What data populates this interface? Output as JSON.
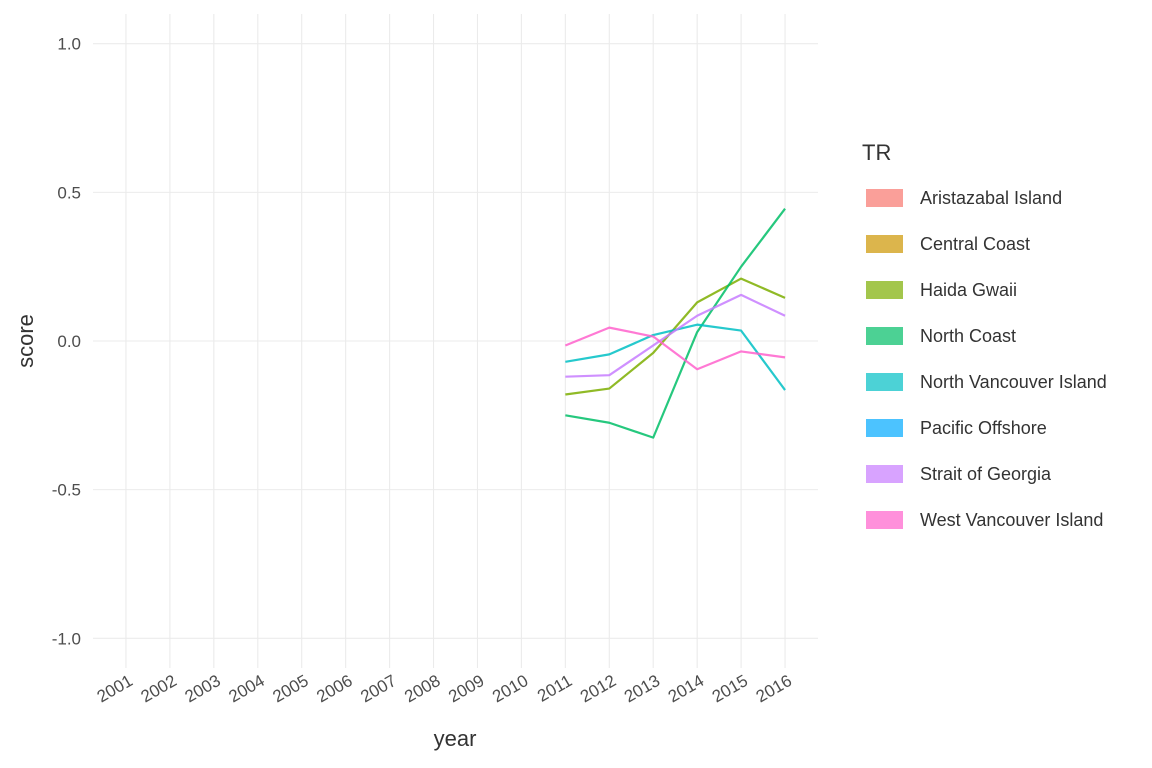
{
  "chart_data": {
    "type": "line",
    "title": "",
    "xlabel": "year",
    "ylabel": "score",
    "x": [
      2001,
      2002,
      2003,
      2004,
      2005,
      2006,
      2007,
      2008,
      2009,
      2010,
      2011,
      2012,
      2013,
      2014,
      2015,
      2016
    ],
    "x_tick_labels": [
      "2001",
      "2002",
      "2003",
      "2004",
      "2005",
      "2006",
      "2007",
      "2008",
      "2009",
      "2010",
      "2011",
      "2012",
      "2013",
      "2014",
      "2015",
      "2016"
    ],
    "ylim": [
      -1.0,
      1.0
    ],
    "y_ticks": [
      -1.0,
      -0.5,
      0.0,
      0.5,
      1.0
    ],
    "y_tick_labels": [
      "-1.0",
      "-0.5",
      "0.0",
      "0.5",
      "1.0"
    ],
    "grid": true,
    "legend": {
      "title": "TR",
      "placement": "right"
    },
    "series": [
      {
        "name": "Aristazabal Island",
        "color": "#F8766D",
        "x": [],
        "values": []
      },
      {
        "name": "Central Coast",
        "color": "#CD9600",
        "x": [],
        "values": []
      },
      {
        "name": "Haida Gwaii",
        "color": "#7CAE00",
        "x": [
          2011,
          2012,
          2013,
          2014,
          2015,
          2016
        ],
        "values": [
          -0.18,
          -0.16,
          -0.04,
          0.13,
          0.21,
          0.145
        ]
      },
      {
        "name": "North Coast",
        "color": "#00BE67",
        "x": [
          2011,
          2012,
          2013,
          2014,
          2015,
          2016
        ],
        "values": [
          -0.25,
          -0.275,
          -0.325,
          0.03,
          0.25,
          0.445
        ]
      },
      {
        "name": "North Vancouver Island",
        "color": "#00BFC4",
        "x": [
          2011,
          2012,
          2013,
          2014,
          2015,
          2016
        ],
        "values": [
          -0.07,
          -0.045,
          0.02,
          0.055,
          0.035,
          -0.165
        ]
      },
      {
        "name": "Pacific Offshore",
        "color": "#00A9FF",
        "x": [],
        "values": []
      },
      {
        "name": "Strait of Georgia",
        "color": "#C77CFF",
        "x": [
          2011,
          2012,
          2013,
          2014,
          2015,
          2016
        ],
        "values": [
          -0.12,
          -0.115,
          -0.015,
          0.085,
          0.155,
          0.085
        ]
      },
      {
        "name": "West Vancouver Island",
        "color": "#FF61CC",
        "x": [
          2011,
          2012,
          2013,
          2014,
          2015,
          2016
        ],
        "values": [
          -0.015,
          0.045,
          0.015,
          -0.095,
          -0.035,
          -0.055
        ]
      }
    ]
  }
}
